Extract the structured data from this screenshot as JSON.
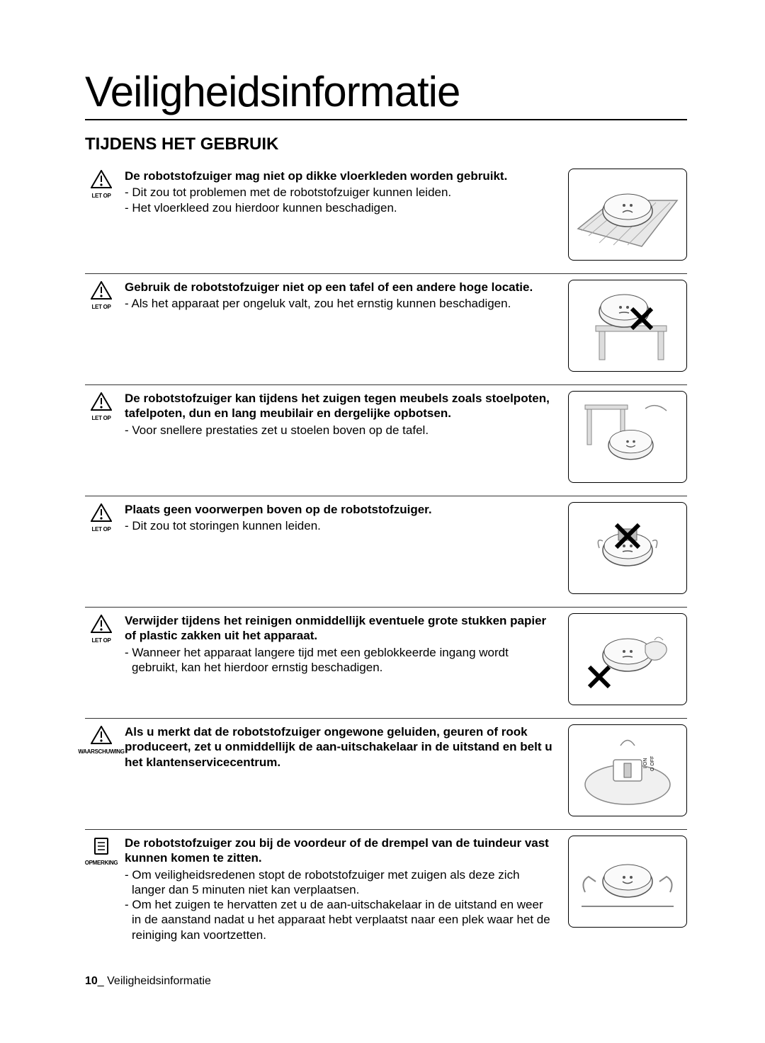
{
  "page_title": "Veiligheidsinformatie",
  "section_title": "TIJDENS HET GEBRUIK",
  "labels": {
    "caution": "LET OP",
    "warning": "WAARSCHUWING",
    "note": "OPMERKING"
  },
  "items": [
    {
      "icon": "caution",
      "heading": "De robotstofzuiger mag niet op dikke vloerkleden worden gebruikt.",
      "bullets": [
        "- Dit zou tot problemen met de robotstofzuiger kunnen leiden.",
        "- Het vloerkleed zou hierdoor kunnen beschadigen."
      ]
    },
    {
      "icon": "caution",
      "heading": "Gebruik de robotstofzuiger niet op een tafel of een andere hoge locatie.",
      "bullets": [
        "- Als het apparaat per ongeluk valt, zou het ernstig kunnen beschadigen."
      ]
    },
    {
      "icon": "caution",
      "heading": "De robotstofzuiger kan tijdens het zuigen tegen meubels zoals stoelpoten, tafelpoten, dun en lang meubilair en dergelijke opbotsen.",
      "bullets": [
        "- Voor snellere prestaties zet u stoelen boven op de tafel."
      ]
    },
    {
      "icon": "caution",
      "heading": "Plaats geen voorwerpen boven op de robotstofzuiger.",
      "bullets": [
        "- Dit zou tot storingen kunnen leiden."
      ]
    },
    {
      "icon": "caution",
      "heading": "Verwijder tijdens het reinigen onmiddellijk eventuele grote stukken papier of plastic zakken uit het apparaat.",
      "bullets": [
        "- Wanneer het apparaat langere tijd met een geblokkeerde ingang wordt gebruikt, kan het hierdoor ernstig beschadigen."
      ]
    },
    {
      "icon": "warning",
      "heading": "Als u merkt dat de robotstofzuiger ongewone geluiden, geuren of rook produceert, zet u onmiddellijk de aan-uitschakelaar in de uitstand en belt u het klantenservicecentrum.",
      "bullets": []
    },
    {
      "icon": "note",
      "heading": "De robotstofzuiger zou bij de voordeur of de drempel van de tuindeur vast kunnen komen te zitten.",
      "bullets": [
        "- Om veiligheidsredenen stopt de robotstofzuiger met zuigen als deze zich langer dan 5 minuten niet kan verplaatsen.",
        "- Om het zuigen te hervatten zet u de aan-uitschakelaar in de uitstand en weer in de aanstand nadat u het apparaat hebt verplaatst naar een plek waar het de reiniging kan voortzetten."
      ]
    }
  ],
  "footer": {
    "page_num": "10",
    "section": "Veiligheidsinformatie"
  },
  "illustrations": {
    "stroke": "#555",
    "x_stroke": "#000"
  }
}
